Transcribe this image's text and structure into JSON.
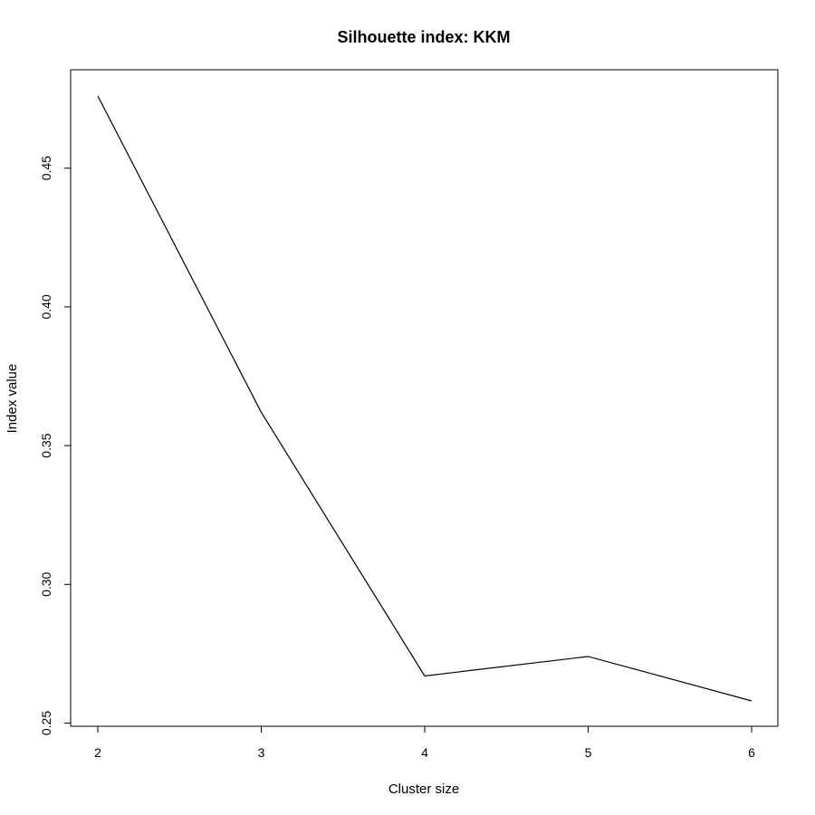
{
  "chart_data": {
    "type": "line",
    "title": "Silhouette index: KKM",
    "xlabel": "Cluster size",
    "ylabel": "Index value",
    "x": [
      2,
      3,
      4,
      5,
      6
    ],
    "series": [
      {
        "values": [
          0.476,
          0.362,
          0.267,
          0.274,
          0.258
        ]
      }
    ],
    "xticks": [
      2,
      3,
      4,
      5,
      6
    ],
    "yticks": [
      0.25,
      0.3,
      0.35,
      0.4,
      0.45
    ],
    "ytick_labels": [
      "0.25",
      "0.30",
      "0.35",
      "0.40",
      "0.45"
    ],
    "xlim": [
      2,
      6
    ],
    "ylim": [
      0.258,
      0.476
    ],
    "grid": false,
    "line_color": "#000000"
  }
}
